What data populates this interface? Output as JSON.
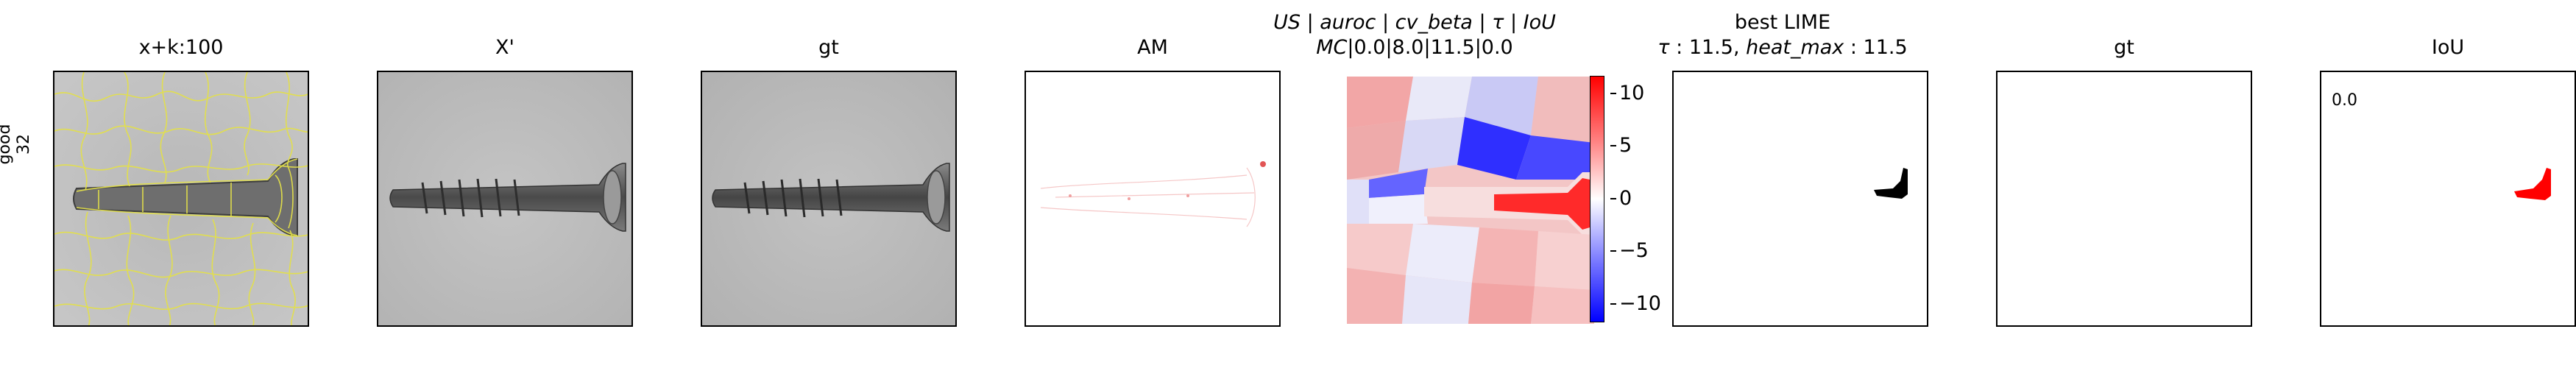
{
  "row_label": [
    "good",
    "32"
  ],
  "panels": [
    {
      "title": "x+k:100"
    },
    {
      "title": "X'"
    },
    {
      "title": "gt"
    },
    {
      "title": "AM"
    },
    {
      "title_line1_parts": [
        "US",
        " | ",
        "auroc",
        " | ",
        "cv_beta",
        " | ",
        "τ",
        " | ",
        "IoU"
      ],
      "title_line2_parts": [
        "MC",
        "|0.0|8.0|11.5|0.0"
      ]
    },
    {
      "title_line1": "best LIME",
      "title_line2_parts": [
        "τ",
        " : 11.5, ",
        "heat_max",
        " : 11.5"
      ]
    },
    {
      "title": "gt"
    },
    {
      "title": "IoU",
      "value": "0.0"
    }
  ],
  "colorbar": {
    "ticks": [
      "10",
      "5",
      "0",
      "−5",
      "−10"
    ],
    "colormap": "bwr",
    "range": [
      -12,
      12
    ]
  },
  "colors": {
    "contour": "#e3e04a",
    "mask": "#000000",
    "iou_mask": "#ff0000",
    "frame": "#000000"
  }
}
